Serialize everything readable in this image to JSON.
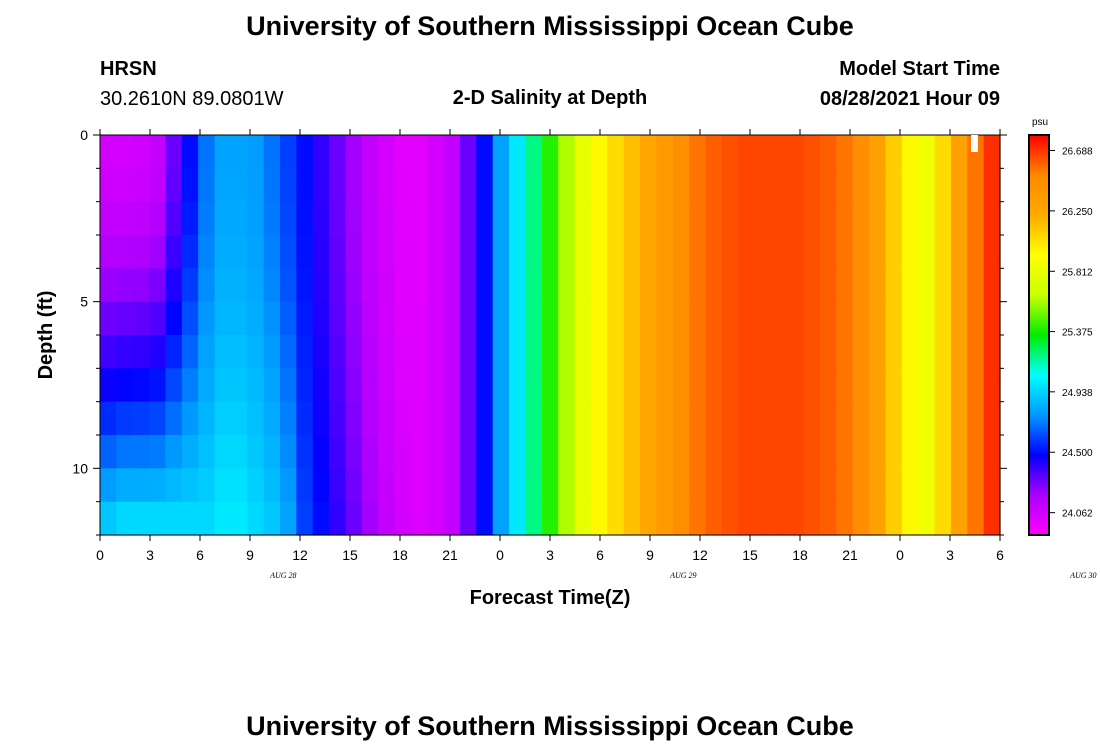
{
  "header": {
    "title_top": "University of Southern Mississippi Ocean Cube",
    "title_bottom": "University of Southern Mississippi Ocean Cube",
    "station_name": "HRSN",
    "station_coords": "30.2610N  89.0801W",
    "plot_title": "2-D Salinity at Depth",
    "model_start_label": "Model Start Time",
    "model_start_value": "08/28/2021 Hour 09"
  },
  "colors": {
    "scale": [
      "#ff00ff",
      "#aa00ff",
      "#0000ff",
      "#0099ff",
      "#00ffff",
      "#00ee00",
      "#ccff00",
      "#ffff00",
      "#ffaa00",
      "#ff8800",
      "#ff0000"
    ]
  },
  "chart_data": {
    "type": "heatmap",
    "title": "2-D Salinity at Depth",
    "xlabel": "Forecast Time(Z)",
    "ylabel": "Depth (ft)",
    "x_tick_labels": [
      "0",
      "3",
      "6",
      "9",
      "12",
      "15",
      "18",
      "21",
      "0",
      "3",
      "6",
      "9",
      "12",
      "15",
      "18",
      "21",
      "0",
      "3",
      "6"
    ],
    "x_day_labels": [
      {
        "label": "AUG  28",
        "at_hour": 11
      },
      {
        "label": "AUG  29",
        "at_hour": 35
      },
      {
        "label": "AUG  30",
        "at_hour": 59
      }
    ],
    "x_range_hours": [
      0,
      54
    ],
    "y_tick_labels": [
      "0",
      "5",
      "10"
    ],
    "y_range_ft": [
      0,
      12
    ],
    "colorbar": {
      "unit": "psu",
      "ticks": [
        "24.062",
        "24.500",
        "24.938",
        "25.375",
        "25.812",
        "26.250",
        "26.688"
      ],
      "min": 23.9,
      "max": 26.8
    },
    "salinity_surface": [
      24.05,
      24.05,
      24.06,
      24.1,
      24.3,
      24.5,
      24.7,
      24.8,
      24.8,
      24.78,
      24.7,
      24.6,
      24.5,
      24.4,
      24.3,
      24.2,
      24.1,
      24.05,
      24.0,
      24.0,
      24.05,
      24.1,
      24.3,
      24.5,
      24.8,
      25.0,
      25.2,
      25.4,
      25.6,
      25.8,
      25.95,
      26.05,
      26.15,
      26.25,
      26.35,
      26.45,
      26.55,
      26.6,
      26.63,
      26.65,
      26.65,
      26.65,
      26.65,
      26.63,
      26.6,
      26.55,
      26.45,
      26.3,
      26.1,
      25.95,
      25.85,
      26.05,
      26.3,
      26.55,
      26.7
    ],
    "salinity_bottom": [
      24.9,
      24.95,
      24.95,
      24.95,
      24.95,
      24.95,
      24.95,
      25.0,
      25.0,
      24.95,
      24.9,
      24.8,
      24.6,
      24.5,
      24.4,
      24.3,
      24.2,
      24.1,
      24.05,
      24.02,
      24.05,
      24.1,
      24.3,
      24.5,
      24.8,
      25.0,
      25.2,
      25.4,
      25.6,
      25.8,
      25.95,
      26.05,
      26.15,
      26.25,
      26.35,
      26.45,
      26.55,
      26.6,
      26.63,
      26.65,
      26.65,
      26.65,
      26.65,
      26.63,
      26.6,
      26.55,
      26.45,
      26.3,
      26.1,
      25.95,
      25.85,
      26.05,
      26.3,
      26.55,
      26.7
    ]
  }
}
